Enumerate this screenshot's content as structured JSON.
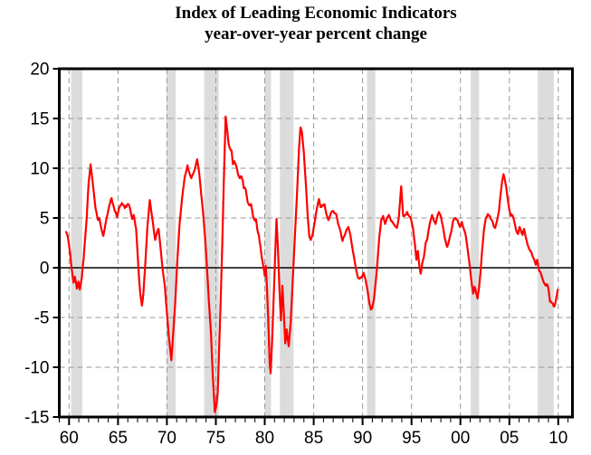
{
  "title": {
    "line1": "Index of Leading Economic Indicators",
    "line2": "year-over-year percent change"
  },
  "style": {
    "line_color": "#ff0000",
    "recession_band_color": "#dcdcdc",
    "gridline_color": "#999999",
    "frame_color": "#000000",
    "text_color": "#000000",
    "background": "#ffffff"
  },
  "chart_data": {
    "type": "line",
    "title": "Index of Leading Economic Indicators",
    "subtitle": "year-over-year percent change",
    "xlabel": "",
    "ylabel": "",
    "x_domain": [
      1959.0,
      2011.45
    ],
    "ylim": [
      -15,
      20
    ],
    "grid": "dashed gray gridlines every 5 units on both axes; solid black line at 0",
    "legend": "none",
    "x_axis": {
      "tick_years": [
        1960,
        1965,
        1970,
        1975,
        1980,
        1985,
        1990,
        1995,
        2000,
        2005,
        2010
      ],
      "tick_labels": [
        "60",
        "65",
        "70",
        "75",
        "80",
        "85",
        "90",
        "95",
        "00",
        "05",
        "10"
      ],
      "minor_tick_every_years": 1
    },
    "y_axis": {
      "ticks": [
        20,
        15,
        10,
        5,
        0,
        -5,
        -10,
        -15
      ],
      "labels": [
        "20",
        "15",
        "10",
        "5",
        "0",
        "-5",
        "-10",
        "-15"
      ]
    },
    "recession_bands": [
      [
        1960.2,
        1961.35
      ],
      [
        1969.95,
        1970.9
      ],
      [
        1973.8,
        1975.3
      ],
      [
        1980.0,
        1980.65
      ],
      [
        1981.55,
        1982.95
      ],
      [
        1990.45,
        1991.3
      ],
      [
        2001.05,
        2001.9
      ],
      [
        2007.9,
        2009.55
      ]
    ],
    "zero_line": true,
    "series": [
      {
        "name": "Index of Leading Economic Indicators, year-over-year % change",
        "color": "#ff0000",
        "points": [
          [
            1959.7,
            3.6
          ],
          [
            1959.9,
            3.0
          ],
          [
            1960.1,
            1.5
          ],
          [
            1960.25,
            0.0
          ],
          [
            1960.45,
            -1.5
          ],
          [
            1960.6,
            -0.9
          ],
          [
            1960.8,
            -2.1
          ],
          [
            1960.95,
            -1.4
          ],
          [
            1961.1,
            -2.2
          ],
          [
            1961.3,
            -1.0
          ],
          [
            1961.5,
            1.0
          ],
          [
            1961.8,
            5.0
          ],
          [
            1962.0,
            8.5
          ],
          [
            1962.2,
            10.4
          ],
          [
            1962.45,
            8.3
          ],
          [
            1962.7,
            6.0
          ],
          [
            1962.95,
            4.8
          ],
          [
            1963.1,
            5.0
          ],
          [
            1963.3,
            3.9
          ],
          [
            1963.5,
            3.2
          ],
          [
            1963.8,
            4.8
          ],
          [
            1964.1,
            6.2
          ],
          [
            1964.35,
            7.0
          ],
          [
            1964.6,
            6.0
          ],
          [
            1964.9,
            5.1
          ],
          [
            1965.1,
            5.9
          ],
          [
            1965.4,
            6.5
          ],
          [
            1965.7,
            6.0
          ],
          [
            1966.0,
            6.4
          ],
          [
            1966.2,
            6.1
          ],
          [
            1966.45,
            4.9
          ],
          [
            1966.6,
            5.3
          ],
          [
            1966.85,
            3.9
          ],
          [
            1967.0,
            1.5
          ],
          [
            1967.15,
            -1.0
          ],
          [
            1967.3,
            -2.8
          ],
          [
            1967.45,
            -3.8
          ],
          [
            1967.6,
            -2.5
          ],
          [
            1967.8,
            0.5
          ],
          [
            1968.0,
            4.0
          ],
          [
            1968.25,
            6.8
          ],
          [
            1968.5,
            5.0
          ],
          [
            1968.8,
            2.8
          ],
          [
            1969.0,
            3.6
          ],
          [
            1969.15,
            3.9
          ],
          [
            1969.35,
            2.0
          ],
          [
            1969.55,
            0.0
          ],
          [
            1969.8,
            -2.0
          ],
          [
            1970.0,
            -4.5
          ],
          [
            1970.2,
            -7.0
          ],
          [
            1970.45,
            -9.3
          ],
          [
            1970.65,
            -6.5
          ],
          [
            1970.85,
            -3.5
          ],
          [
            1971.05,
            0.5
          ],
          [
            1971.3,
            4.5
          ],
          [
            1971.55,
            7.0
          ],
          [
            1971.8,
            9.0
          ],
          [
            1972.1,
            10.3
          ],
          [
            1972.3,
            9.5
          ],
          [
            1972.5,
            9.0
          ],
          [
            1972.75,
            9.6
          ],
          [
            1972.95,
            10.3
          ],
          [
            1973.1,
            10.9
          ],
          [
            1973.3,
            9.5
          ],
          [
            1973.5,
            7.5
          ],
          [
            1973.7,
            5.5
          ],
          [
            1973.9,
            3.0
          ],
          [
            1974.1,
            0.0
          ],
          [
            1974.3,
            -3.5
          ],
          [
            1974.5,
            -6.5
          ],
          [
            1974.7,
            -11.0
          ],
          [
            1974.9,
            -14.5
          ],
          [
            1975.05,
            -13.8
          ],
          [
            1975.2,
            -12.5
          ],
          [
            1975.35,
            -8.0
          ],
          [
            1975.5,
            -3.0
          ],
          [
            1975.65,
            2.0
          ],
          [
            1975.8,
            8.0
          ],
          [
            1976.0,
            15.2
          ],
          [
            1976.15,
            14.0
          ],
          [
            1976.3,
            12.5
          ],
          [
            1976.45,
            12.0
          ],
          [
            1976.6,
            11.8
          ],
          [
            1976.75,
            10.4
          ],
          [
            1976.9,
            10.7
          ],
          [
            1977.1,
            10.2
          ],
          [
            1977.3,
            9.3
          ],
          [
            1977.45,
            9.0
          ],
          [
            1977.6,
            9.2
          ],
          [
            1977.75,
            8.8
          ],
          [
            1977.85,
            8.0
          ],
          [
            1978.05,
            7.9
          ],
          [
            1978.25,
            6.6
          ],
          [
            1978.4,
            6.3
          ],
          [
            1978.6,
            6.4
          ],
          [
            1978.8,
            5.2
          ],
          [
            1978.95,
            4.8
          ],
          [
            1979.1,
            4.9
          ],
          [
            1979.25,
            3.8
          ],
          [
            1979.4,
            3.3
          ],
          [
            1979.55,
            2.2
          ],
          [
            1979.7,
            1.0
          ],
          [
            1979.85,
            0.2
          ],
          [
            1980.0,
            -0.8
          ],
          [
            1980.1,
            0.2
          ],
          [
            1980.2,
            -1.5
          ],
          [
            1980.35,
            -5.0
          ],
          [
            1980.5,
            -9.5
          ],
          [
            1980.6,
            -10.6
          ],
          [
            1980.75,
            -7.5
          ],
          [
            1980.9,
            -3.5
          ],
          [
            1981.05,
            1.0
          ],
          [
            1981.2,
            4.9
          ],
          [
            1981.35,
            2.0
          ],
          [
            1981.5,
            -2.0
          ],
          [
            1981.65,
            -5.3
          ],
          [
            1981.8,
            -1.8
          ],
          [
            1981.95,
            -4.5
          ],
          [
            1982.1,
            -7.6
          ],
          [
            1982.25,
            -6.2
          ],
          [
            1982.45,
            -7.9
          ],
          [
            1982.65,
            -5.5
          ],
          [
            1982.8,
            -2.5
          ],
          [
            1982.95,
            0.5
          ],
          [
            1983.1,
            3.5
          ],
          [
            1983.3,
            7.5
          ],
          [
            1983.5,
            12.0
          ],
          [
            1983.65,
            14.1
          ],
          [
            1983.8,
            13.6
          ],
          [
            1984.0,
            11.5
          ],
          [
            1984.2,
            8.5
          ],
          [
            1984.4,
            5.0
          ],
          [
            1984.55,
            3.2
          ],
          [
            1984.7,
            2.8
          ],
          [
            1984.9,
            3.4
          ],
          [
            1985.1,
            4.5
          ],
          [
            1985.3,
            5.8
          ],
          [
            1985.55,
            6.9
          ],
          [
            1985.7,
            6.1
          ],
          [
            1985.9,
            6.3
          ],
          [
            1986.1,
            6.4
          ],
          [
            1986.3,
            5.4
          ],
          [
            1986.5,
            4.8
          ],
          [
            1986.7,
            5.3
          ],
          [
            1986.9,
            5.7
          ],
          [
            1987.1,
            5.5
          ],
          [
            1987.3,
            5.4
          ],
          [
            1987.5,
            4.4
          ],
          [
            1987.7,
            3.8
          ],
          [
            1987.95,
            2.7
          ],
          [
            1988.15,
            3.2
          ],
          [
            1988.35,
            3.8
          ],
          [
            1988.55,
            4.1
          ],
          [
            1988.75,
            3.3
          ],
          [
            1988.95,
            2.0
          ],
          [
            1989.1,
            1.2
          ],
          [
            1989.3,
            0.0
          ],
          [
            1989.5,
            -0.9
          ],
          [
            1989.7,
            -1.1
          ],
          [
            1989.9,
            -1.0
          ],
          [
            1990.1,
            -0.5
          ],
          [
            1990.3,
            -1.2
          ],
          [
            1990.5,
            -2.2
          ],
          [
            1990.7,
            -3.6
          ],
          [
            1990.85,
            -4.2
          ],
          [
            1991.0,
            -4.0
          ],
          [
            1991.15,
            -3.2
          ],
          [
            1991.3,
            -1.8
          ],
          [
            1991.5,
            0.3
          ],
          [
            1991.7,
            3.0
          ],
          [
            1991.9,
            4.8
          ],
          [
            1992.1,
            5.2
          ],
          [
            1992.3,
            4.4
          ],
          [
            1992.5,
            5.0
          ],
          [
            1992.7,
            5.3
          ],
          [
            1992.9,
            4.7
          ],
          [
            1993.1,
            4.5
          ],
          [
            1993.3,
            4.2
          ],
          [
            1993.5,
            4.0
          ],
          [
            1993.7,
            5.0
          ],
          [
            1993.95,
            8.2
          ],
          [
            1994.15,
            5.2
          ],
          [
            1994.35,
            5.3
          ],
          [
            1994.55,
            5.6
          ],
          [
            1994.75,
            5.2
          ],
          [
            1994.95,
            4.9
          ],
          [
            1995.15,
            4.0
          ],
          [
            1995.35,
            2.3
          ],
          [
            1995.5,
            0.8
          ],
          [
            1995.65,
            1.7
          ],
          [
            1995.8,
            0.2
          ],
          [
            1995.95,
            -0.6
          ],
          [
            1996.1,
            0.5
          ],
          [
            1996.25,
            1.0
          ],
          [
            1996.45,
            2.5
          ],
          [
            1996.6,
            2.8
          ],
          [
            1996.75,
            3.8
          ],
          [
            1996.95,
            4.8
          ],
          [
            1997.1,
            5.3
          ],
          [
            1997.3,
            4.7
          ],
          [
            1997.45,
            4.4
          ],
          [
            1997.6,
            5.0
          ],
          [
            1997.8,
            5.6
          ],
          [
            1998.0,
            5.2
          ],
          [
            1998.2,
            4.2
          ],
          [
            1998.4,
            3.0
          ],
          [
            1998.65,
            2.1
          ],
          [
            1998.85,
            2.8
          ],
          [
            1999.05,
            3.6
          ],
          [
            1999.25,
            4.7
          ],
          [
            1999.5,
            5.0
          ],
          [
            1999.7,
            4.8
          ],
          [
            1999.95,
            4.1
          ],
          [
            2000.15,
            4.6
          ],
          [
            2000.35,
            3.9
          ],
          [
            2000.55,
            3.2
          ],
          [
            2000.75,
            1.8
          ],
          [
            2000.95,
            0.2
          ],
          [
            2001.15,
            -1.6
          ],
          [
            2001.3,
            -2.6
          ],
          [
            2001.45,
            -1.9
          ],
          [
            2001.6,
            -2.5
          ],
          [
            2001.75,
            -3.1
          ],
          [
            2001.9,
            -2.0
          ],
          [
            2002.05,
            -0.5
          ],
          [
            2002.2,
            1.5
          ],
          [
            2002.4,
            3.8
          ],
          [
            2002.6,
            5.0
          ],
          [
            2002.8,
            5.4
          ],
          [
            2003.0,
            5.2
          ],
          [
            2003.2,
            4.8
          ],
          [
            2003.4,
            4.2
          ],
          [
            2003.55,
            4.0
          ],
          [
            2003.75,
            4.8
          ],
          [
            2003.95,
            5.8
          ],
          [
            2004.1,
            7.3
          ],
          [
            2004.25,
            8.6
          ],
          [
            2004.4,
            9.4
          ],
          [
            2004.55,
            8.8
          ],
          [
            2004.7,
            8.0
          ],
          [
            2004.85,
            6.8
          ],
          [
            2005.0,
            5.8
          ],
          [
            2005.15,
            5.2
          ],
          [
            2005.3,
            5.3
          ],
          [
            2005.45,
            4.9
          ],
          [
            2005.6,
            4.2
          ],
          [
            2005.75,
            3.6
          ],
          [
            2005.9,
            3.4
          ],
          [
            2006.05,
            4.1
          ],
          [
            2006.2,
            3.7
          ],
          [
            2006.35,
            3.3
          ],
          [
            2006.5,
            3.9
          ],
          [
            2006.65,
            3.2
          ],
          [
            2006.8,
            2.6
          ],
          [
            2006.95,
            2.1
          ],
          [
            2007.1,
            1.8
          ],
          [
            2007.25,
            1.6
          ],
          [
            2007.4,
            1.1
          ],
          [
            2007.55,
            0.8
          ],
          [
            2007.7,
            0.3
          ],
          [
            2007.85,
            0.8
          ],
          [
            2008.0,
            -0.1
          ],
          [
            2008.15,
            -0.4
          ],
          [
            2008.3,
            -0.8
          ],
          [
            2008.45,
            -1.3
          ],
          [
            2008.6,
            -1.6
          ],
          [
            2008.75,
            -1.8
          ],
          [
            2008.9,
            -1.7
          ],
          [
            2009.0,
            -2.1
          ],
          [
            2009.15,
            -3.4
          ],
          [
            2009.3,
            -3.5
          ],
          [
            2009.45,
            -3.6
          ],
          [
            2009.6,
            -3.9
          ],
          [
            2009.75,
            -3.3
          ],
          [
            2009.95,
            -2.2
          ]
        ]
      }
    ]
  }
}
